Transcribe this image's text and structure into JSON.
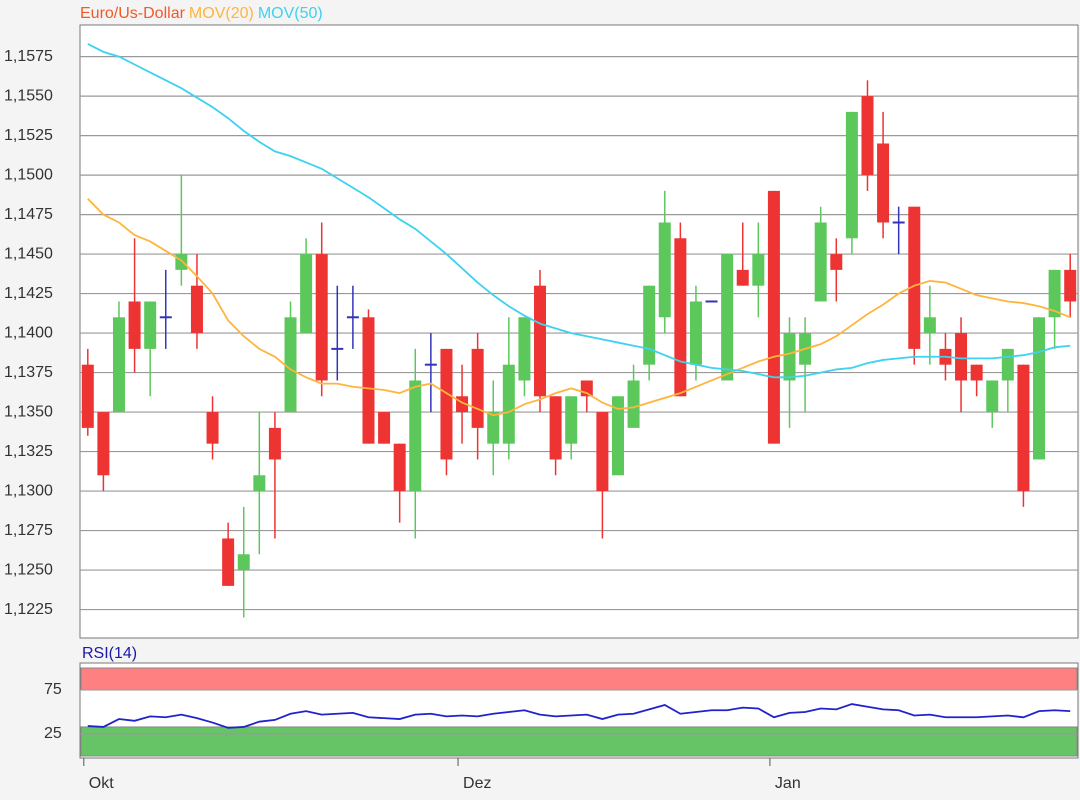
{
  "chart_data": [
    {
      "type": "candlestick",
      "categories": [
        "Okt",
        null,
        null,
        null,
        null,
        null,
        null,
        null,
        null,
        null,
        null,
        null,
        null,
        null,
        null,
        null,
        null,
        null,
        null,
        null,
        null,
        null,
        null,
        null,
        "Dez",
        null,
        null,
        null,
        null,
        null,
        null,
        null,
        null,
        null,
        null,
        null,
        null,
        null,
        null,
        null,
        null,
        null,
        null,
        null,
        "Jan",
        null,
        null,
        null,
        null,
        null,
        null,
        null,
        null,
        null,
        null,
        null,
        null,
        null,
        null,
        null,
        null,
        null,
        null,
        null
      ],
      "candles": {
        "name": "Euro/Us-Dollar",
        "color": "#f05a28",
        "up_color": "#5cc85c",
        "down_color": "#ee3333",
        "doji_color": "#3333bb",
        "open": [
          1.138,
          1.135,
          1.135,
          1.142,
          1.139,
          1.141,
          1.144,
          1.143,
          1.135,
          1.127,
          1.125,
          1.13,
          1.134,
          1.135,
          1.14,
          1.145,
          1.139,
          1.141,
          1.141,
          1.135,
          1.133,
          1.13,
          1.138,
          1.139,
          1.136,
          1.139,
          1.133,
          1.133,
          1.137,
          1.143,
          1.136,
          1.133,
          1.137,
          1.135,
          1.131,
          1.134,
          1.138,
          1.141,
          1.146,
          1.138,
          1.142,
          1.137,
          1.144,
          1.143,
          1.149,
          1.137,
          1.138,
          1.142,
          1.145,
          1.146,
          1.155,
          1.152,
          1.147,
          1.148,
          1.14,
          1.139,
          1.14,
          1.138,
          1.135,
          1.137,
          1.138,
          1.132,
          1.141,
          1.144
        ],
        "high": [
          1.139,
          1.135,
          1.142,
          1.146,
          1.142,
          1.144,
          1.15,
          1.145,
          1.136,
          1.128,
          1.129,
          1.135,
          1.135,
          1.142,
          1.146,
          1.147,
          1.143,
          1.143,
          1.1415,
          1.135,
          1.133,
          1.139,
          1.14,
          1.139,
          1.138,
          1.14,
          1.137,
          1.141,
          1.141,
          1.144,
          1.136,
          1.136,
          1.137,
          1.135,
          1.136,
          1.138,
          1.143,
          1.149,
          1.147,
          1.143,
          1.142,
          1.145,
          1.147,
          1.147,
          1.149,
          1.141,
          1.141,
          1.148,
          1.146,
          1.154,
          1.156,
          1.154,
          1.148,
          1.148,
          1.143,
          1.14,
          1.141,
          1.138,
          1.137,
          1.139,
          1.138,
          1.141,
          1.144,
          1.145
        ],
        "low": [
          1.1335,
          1.13,
          1.135,
          1.1375,
          1.136,
          1.139,
          1.143,
          1.139,
          1.132,
          1.124,
          1.122,
          1.126,
          1.127,
          1.135,
          1.14,
          1.136,
          1.137,
          1.139,
          1.133,
          1.133,
          1.128,
          1.127,
          1.135,
          1.131,
          1.133,
          1.132,
          1.131,
          1.132,
          1.136,
          1.135,
          1.131,
          1.132,
          1.135,
          1.127,
          1.131,
          1.134,
          1.137,
          1.14,
          1.136,
          1.137,
          1.142,
          1.137,
          1.143,
          1.141,
          1.133,
          1.134,
          1.135,
          1.142,
          1.142,
          1.145,
          1.149,
          1.146,
          1.145,
          1.138,
          1.138,
          1.137,
          1.135,
          1.136,
          1.134,
          1.135,
          1.129,
          1.132,
          1.139,
          1.141
        ],
        "close": [
          1.134,
          1.131,
          1.141,
          1.139,
          1.142,
          1.141,
          1.145,
          1.14,
          1.133,
          1.124,
          1.126,
          1.131,
          1.132,
          1.141,
          1.145,
          1.137,
          1.139,
          1.141,
          1.133,
          1.133,
          1.13,
          1.137,
          1.138,
          1.132,
          1.135,
          1.134,
          1.135,
          1.138,
          1.141,
          1.136,
          1.132,
          1.136,
          1.136,
          1.13,
          1.136,
          1.137,
          1.143,
          1.147,
          1.136,
          1.142,
          1.142,
          1.145,
          1.143,
          1.145,
          1.133,
          1.14,
          1.14,
          1.147,
          1.144,
          1.154,
          1.15,
          1.147,
          1.147,
          1.139,
          1.141,
          1.138,
          1.137,
          1.137,
          1.137,
          1.139,
          1.13,
          1.141,
          1.144,
          1.142
        ]
      },
      "series": [
        {
          "name": "MOV(20)",
          "color": "#ffb43c",
          "values": [
            1.1485,
            1.1475,
            1.147,
            1.1462,
            1.1458,
            1.1452,
            1.1446,
            1.1436,
            1.1425,
            1.1408,
            1.1398,
            1.139,
            1.1385,
            1.1377,
            1.1372,
            1.1368,
            1.1368,
            1.1366,
            1.1365,
            1.1364,
            1.1362,
            1.1366,
            1.1368,
            1.1362,
            1.1356,
            1.1352,
            1.1348,
            1.135,
            1.1355,
            1.1358,
            1.1362,
            1.1365,
            1.1362,
            1.1356,
            1.1352,
            1.1353,
            1.1356,
            1.1359,
            1.1362,
            1.1366,
            1.137,
            1.1374,
            1.1378,
            1.1382,
            1.1385,
            1.1387,
            1.139,
            1.1393,
            1.1398,
            1.1405,
            1.1412,
            1.1418,
            1.1425,
            1.143,
            1.1433,
            1.1432,
            1.1428,
            1.1424,
            1.1422,
            1.142,
            1.1419,
            1.1417,
            1.1414,
            1.141
          ]
        },
        {
          "name": "MOV(50)",
          "color": "#3cd2f0",
          "values": [
            1.1583,
            1.1578,
            1.1575,
            1.157,
            1.1565,
            1.156,
            1.1555,
            1.1549,
            1.1543,
            1.1536,
            1.1528,
            1.1521,
            1.1515,
            1.1512,
            1.1508,
            1.1504,
            1.1498,
            1.1492,
            1.1486,
            1.1479,
            1.1472,
            1.1466,
            1.1458,
            1.145,
            1.1441,
            1.1432,
            1.1424,
            1.1417,
            1.1411,
            1.1406,
            1.1403,
            1.14,
            1.1398,
            1.1396,
            1.1394,
            1.1392,
            1.139,
            1.1386,
            1.1382,
            1.138,
            1.1378,
            1.1377,
            1.1376,
            1.1374,
            1.1372,
            1.1372,
            1.1373,
            1.1375,
            1.1377,
            1.1378,
            1.1381,
            1.1383,
            1.1384,
            1.1385,
            1.1385,
            1.1385,
            1.1384,
            1.1384,
            1.1384,
            1.1385,
            1.1386,
            1.1388,
            1.1391,
            1.1392
          ]
        }
      ],
      "ylim": [
        1.1207,
        1.1595
      ],
      "yticks": [
        {
          "value": 1.1225,
          "label": "1,1225"
        },
        {
          "value": 1.125,
          "label": "1,1250"
        },
        {
          "value": 1.1275,
          "label": "1,1275"
        },
        {
          "value": 1.13,
          "label": "1,1300"
        },
        {
          "value": 1.1325,
          "label": "1,1325"
        },
        {
          "value": 1.135,
          "label": "1,1350"
        },
        {
          "value": 1.1375,
          "label": "1,1375"
        },
        {
          "value": 1.14,
          "label": "1,1400"
        },
        {
          "value": 1.1425,
          "label": "1,1425"
        },
        {
          "value": 1.145,
          "label": "1,1450"
        },
        {
          "value": 1.1475,
          "label": "1,1475"
        },
        {
          "value": 1.15,
          "label": "1,1500"
        },
        {
          "value": 1.1525,
          "label": "1,1525"
        },
        {
          "value": 1.155,
          "label": "1,1550"
        },
        {
          "value": 1.1575,
          "label": "1,1575"
        }
      ],
      "grid": true
    },
    {
      "type": "line",
      "title": "RSI(14)",
      "color": "#2222cc",
      "values": [
        34,
        33,
        42,
        40,
        45,
        44,
        47,
        43,
        38,
        32,
        33,
        39,
        41,
        48,
        51,
        47,
        48,
        49,
        44,
        43,
        42,
        47,
        48,
        45,
        46,
        45,
        48,
        50,
        52,
        47,
        45,
        46,
        47,
        42,
        47,
        48,
        53,
        58,
        48,
        50,
        52,
        52,
        55,
        54,
        44,
        49,
        50,
        54,
        53,
        59,
        56,
        53,
        52,
        46,
        47,
        44,
        44,
        44,
        45,
        46,
        44,
        51,
        52,
        51
      ],
      "ylim": [
        0,
        100
      ],
      "yticks": [
        25,
        75
      ],
      "bands": [
        {
          "from": 75,
          "to": 100,
          "color": "#ff8080"
        },
        {
          "from": 0,
          "to": 33,
          "color": "#66c466"
        }
      ],
      "grid": true
    }
  ]
}
